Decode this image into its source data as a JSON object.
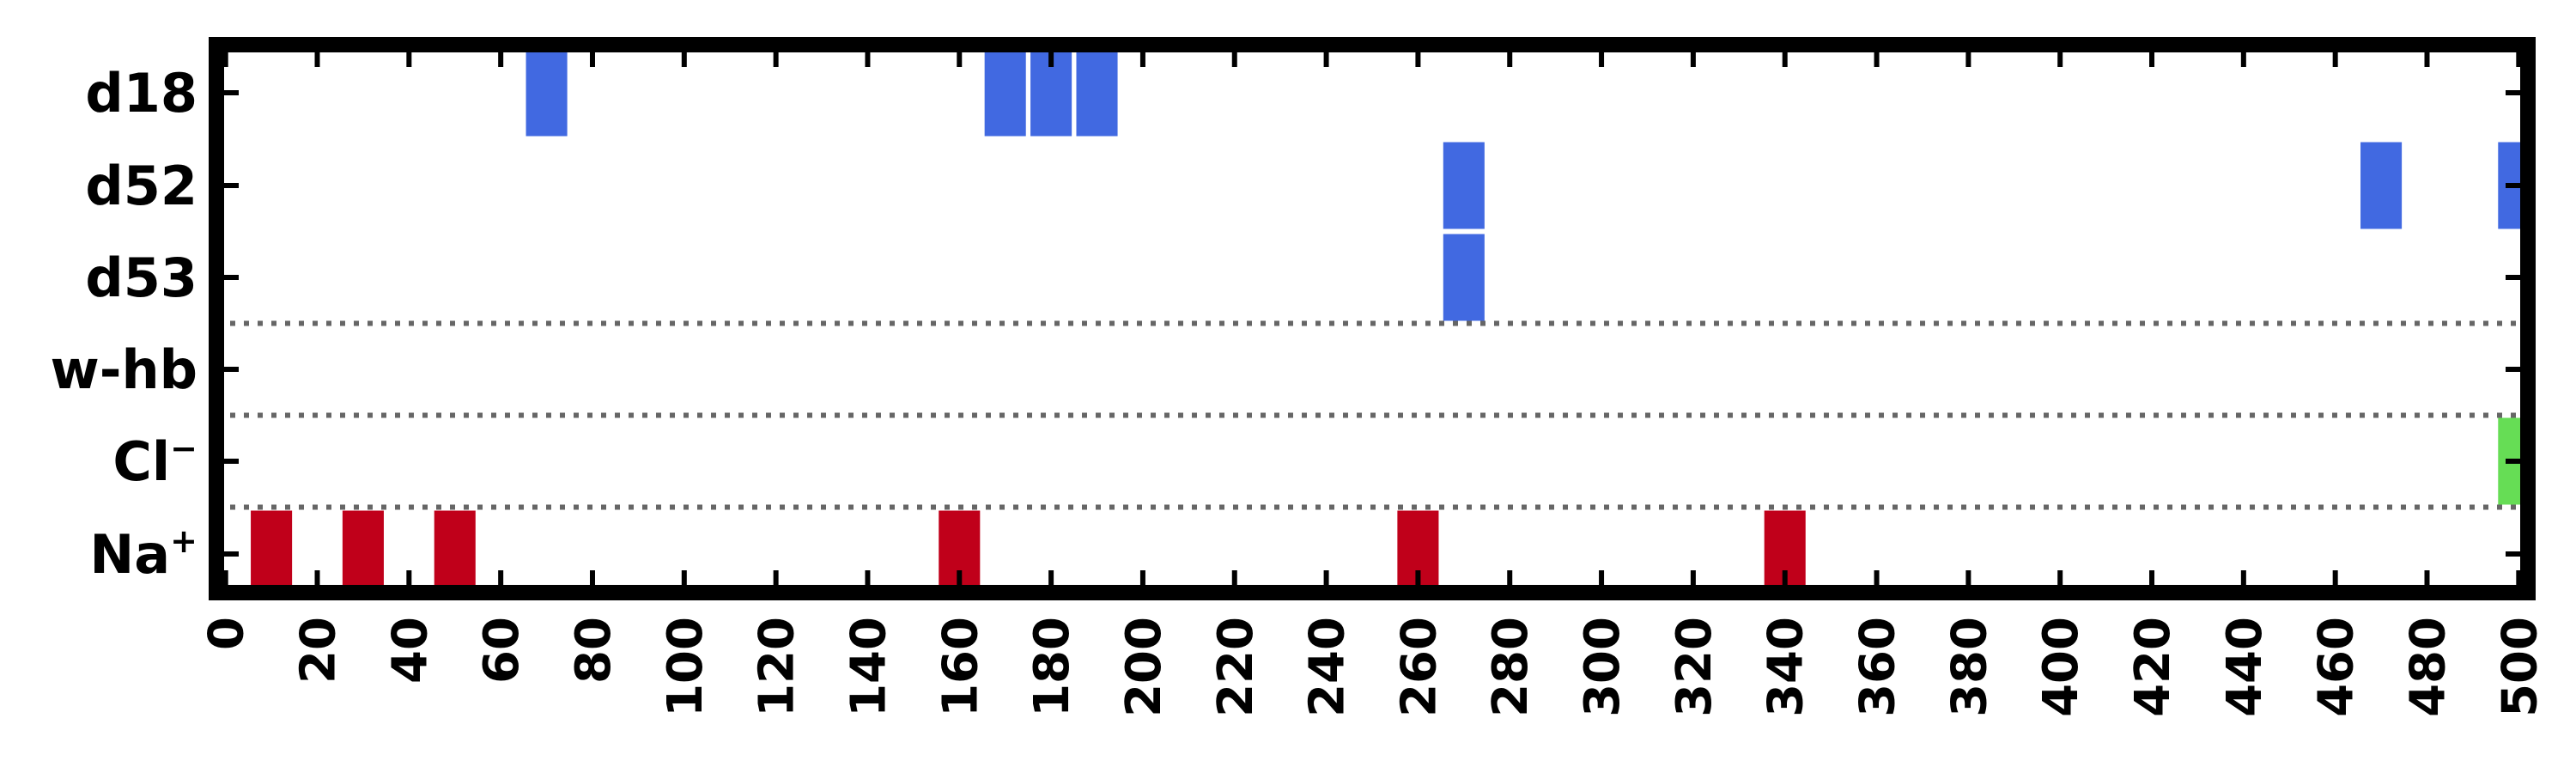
{
  "chart_data": {
    "type": "event-raster",
    "title": "",
    "xlabel": "",
    "ylabel": "",
    "xlim": [
      -2,
      502
    ],
    "x_ticks": [
      0,
      20,
      40,
      60,
      80,
      100,
      120,
      140,
      160,
      180,
      200,
      220,
      240,
      260,
      280,
      300,
      320,
      340,
      360,
      380,
      400,
      420,
      440,
      460,
      480,
      500
    ],
    "x_tick_labels": [
      "0",
      "20",
      "40",
      "60",
      "80",
      "100",
      "120",
      "140",
      "160",
      "180",
      "200",
      "220",
      "240",
      "260",
      "280",
      "300",
      "320",
      "340",
      "360",
      "380",
      "400",
      "420",
      "440",
      "460",
      "480",
      "500"
    ],
    "rows": [
      {
        "id": "d18",
        "label": "d18",
        "sup": "",
        "color": "#4169E1",
        "events": [
          70,
          170,
          180,
          190
        ]
      },
      {
        "id": "d52",
        "label": "d52",
        "sup": "",
        "color": "#4169E1",
        "events": [
          270,
          470,
          500
        ]
      },
      {
        "id": "d53",
        "label": "d53",
        "sup": "",
        "color": "#4169E1",
        "events": [
          270
        ]
      },
      {
        "id": "w-hb",
        "label": "w-hb",
        "sup": "",
        "color": "#4169E1",
        "events": []
      },
      {
        "id": "cl",
        "label": "Cl",
        "sup": "−",
        "color": "#66DD55",
        "events": [
          500
        ]
      },
      {
        "id": "na",
        "label": "Na",
        "sup": "+",
        "color": "#C0001A",
        "events": [
          10,
          30,
          50,
          160,
          260,
          340
        ]
      }
    ],
    "event_width": 9,
    "separators_after_rows": [
      "d53",
      "w-hb",
      "cl"
    ],
    "grid": false,
    "legend": "none"
  }
}
